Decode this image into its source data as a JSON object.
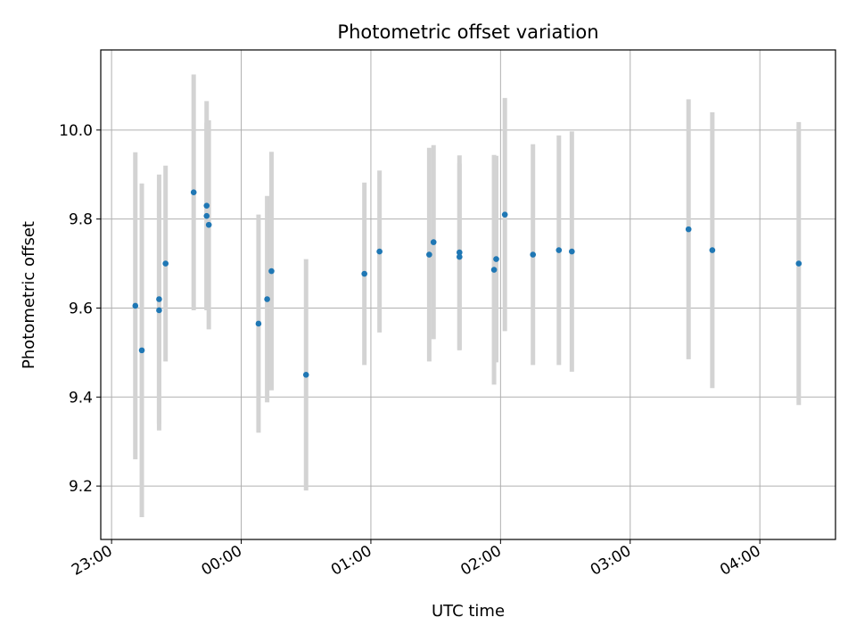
{
  "chart_data": {
    "type": "scatter",
    "title": "Photometric offset variation",
    "xlabel": "UTC time",
    "ylabel": "Photometric offset",
    "x_axis": {
      "kind": "time",
      "ticks": [
        "23:00",
        "00:00",
        "01:00",
        "02:00",
        "03:00",
        "04:00"
      ],
      "range": [
        "22:55",
        "04:35"
      ]
    },
    "y_axis": {
      "ticks": [
        "9.2",
        "9.4",
        "9.6",
        "9.8",
        "10.0"
      ],
      "range": [
        9.08,
        10.18
      ]
    },
    "grid": true,
    "marker_color": "#1f77b4",
    "errorbar_color": "#d3d3d3",
    "points": [
      {
        "t": "23:11",
        "y": 9.605,
        "err": 0.345
      },
      {
        "t": "23:14",
        "y": 9.505,
        "err": 0.375
      },
      {
        "t": "23:22",
        "y": 9.62,
        "err": 0.28
      },
      {
        "t": "23:22",
        "y": 9.595,
        "err": 0.27
      },
      {
        "t": "23:25",
        "y": 9.7,
        "err": 0.22
      },
      {
        "t": "23:38",
        "y": 9.86,
        "err": 0.265
      },
      {
        "t": "23:44",
        "y": 9.83,
        "err": 0.235
      },
      {
        "t": "23:44",
        "y": 9.807,
        "err": 0.21
      },
      {
        "t": "23:45",
        "y": 9.787,
        "err": 0.235
      },
      {
        "t": "00:08",
        "y": 9.565,
        "err": 0.245
      },
      {
        "t": "00:12",
        "y": 9.62,
        "err": 0.232
      },
      {
        "t": "00:14",
        "y": 9.683,
        "err": 0.268
      },
      {
        "t": "00:30",
        "y": 9.45,
        "err": 0.26
      },
      {
        "t": "00:57",
        "y": 9.677,
        "err": 0.205
      },
      {
        "t": "01:04",
        "y": 9.727,
        "err": 0.182
      },
      {
        "t": "01:27",
        "y": 9.72,
        "err": 0.24
      },
      {
        "t": "01:29",
        "y": 9.748,
        "err": 0.218
      },
      {
        "t": "01:41",
        "y": 9.725,
        "err": 0.218
      },
      {
        "t": "01:41",
        "y": 9.715,
        "err": 0.21
      },
      {
        "t": "01:57",
        "y": 9.686,
        "err": 0.258
      },
      {
        "t": "01:58",
        "y": 9.71,
        "err": 0.232
      },
      {
        "t": "02:02",
        "y": 9.81,
        "err": 0.262
      },
      {
        "t": "02:15",
        "y": 9.72,
        "err": 0.248
      },
      {
        "t": "02:27",
        "y": 9.73,
        "err": 0.258
      },
      {
        "t": "02:33",
        "y": 9.727,
        "err": 0.27
      },
      {
        "t": "03:27",
        "y": 9.777,
        "err": 0.292
      },
      {
        "t": "03:38",
        "y": 9.73,
        "err": 0.31
      },
      {
        "t": "04:18",
        "y": 9.7,
        "err": 0.318
      }
    ]
  }
}
